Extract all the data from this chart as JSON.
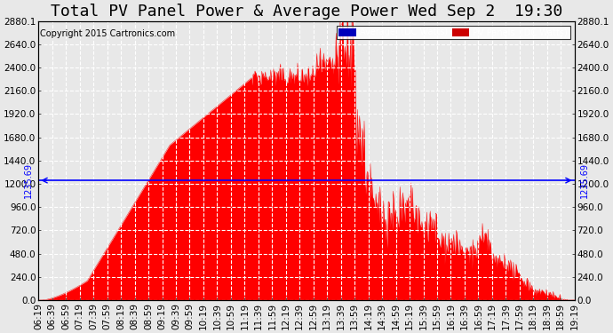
{
  "title": "Total PV Panel Power & Average Power Wed Sep 2  19:30",
  "copyright": "Copyright 2015 Cartronics.com",
  "average_value": 1235.69,
  "y_max": 2880.1,
  "y_min": 0.0,
  "y_ticks": [
    0.0,
    240.0,
    480.0,
    720.0,
    960.0,
    1200.0,
    1440.0,
    1680.0,
    1920.0,
    2160.0,
    2400.0,
    2640.0,
    2880.1
  ],
  "fill_color": "#ff0000",
  "avg_line_color": "#0000ff",
  "background_color": "#e8e8e8",
  "plot_bg_color": "#e8e8e8",
  "grid_color": "#ffffff",
  "title_fontsize": 13,
  "copyright_fontsize": 7,
  "tick_fontsize": 7.5,
  "legend_avg_color": "#0000bb",
  "legend_pv_color": "#cc0000"
}
